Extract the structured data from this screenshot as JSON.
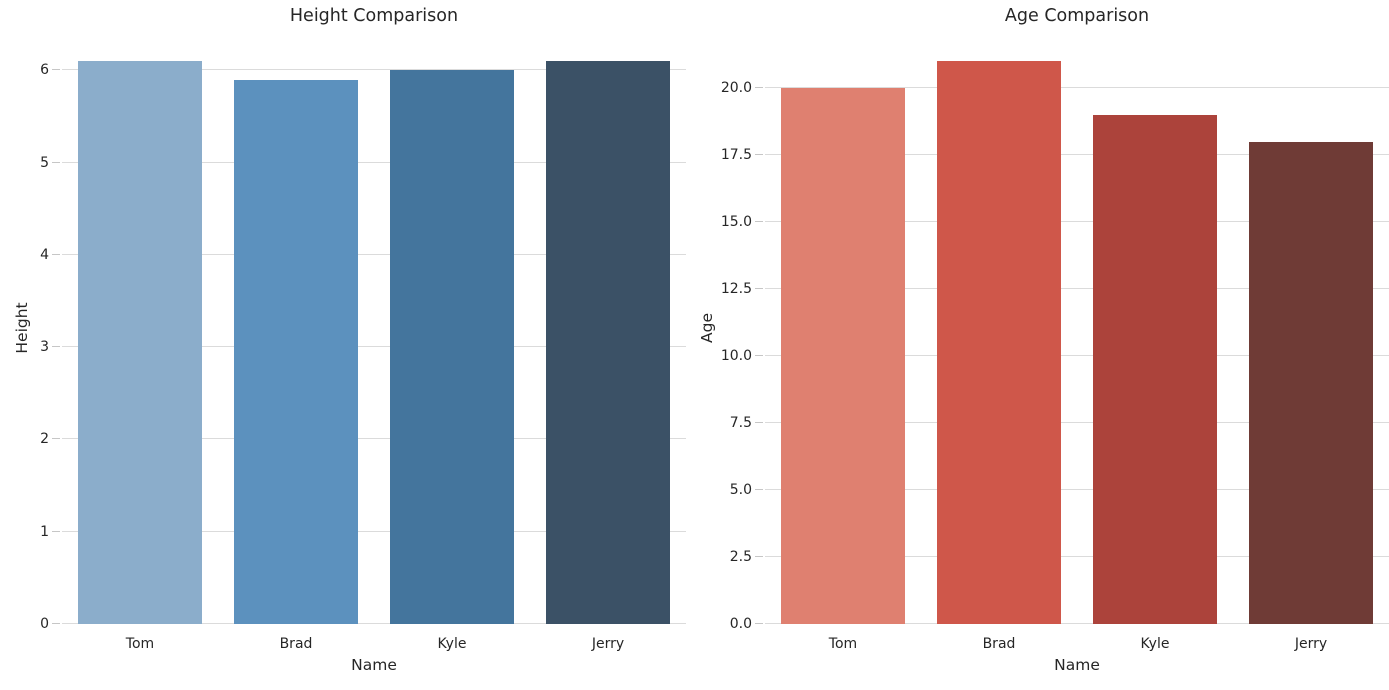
{
  "style": {
    "background": "#ffffff",
    "grid_color": "#dbdbdb",
    "tick_color": "#c6c6c6",
    "text_color": "#262626"
  },
  "chart_data": [
    {
      "type": "bar",
      "title": "Height Comparison",
      "xlabel": "Name",
      "ylabel": "Height",
      "categories": [
        "Tom",
        "Brad",
        "Kyle",
        "Jerry"
      ],
      "values": [
        6.1,
        5.9,
        6.0,
        6.1
      ],
      "ylim": [
        0,
        6.405
      ],
      "yticks": [
        0,
        1,
        2,
        3,
        4,
        5,
        6
      ],
      "ytick_labels": [
        "0",
        "1",
        "2",
        "3",
        "4",
        "5",
        "6"
      ],
      "bar_colors": [
        "#8badcb",
        "#5c91be",
        "#44759d",
        "#3b5166"
      ],
      "grid": true,
      "legend": false
    },
    {
      "type": "bar",
      "title": "Age Comparison",
      "xlabel": "Name",
      "ylabel": "Age",
      "categories": [
        "Tom",
        "Brad",
        "Kyle",
        "Jerry"
      ],
      "values": [
        20,
        21,
        19,
        18
      ],
      "ylim": [
        0,
        22.05
      ],
      "yticks": [
        0,
        2.5,
        5,
        7.5,
        10,
        12.5,
        15,
        17.5,
        20
      ],
      "ytick_labels": [
        "0.0",
        "2.5",
        "5.0",
        "7.5",
        "10.0",
        "12.5",
        "15.0",
        "17.5",
        "20.0"
      ],
      "bar_colors": [
        "#df8070",
        "#cf574a",
        "#ac433b",
        "#6f3b36"
      ],
      "grid": true,
      "legend": false
    }
  ]
}
